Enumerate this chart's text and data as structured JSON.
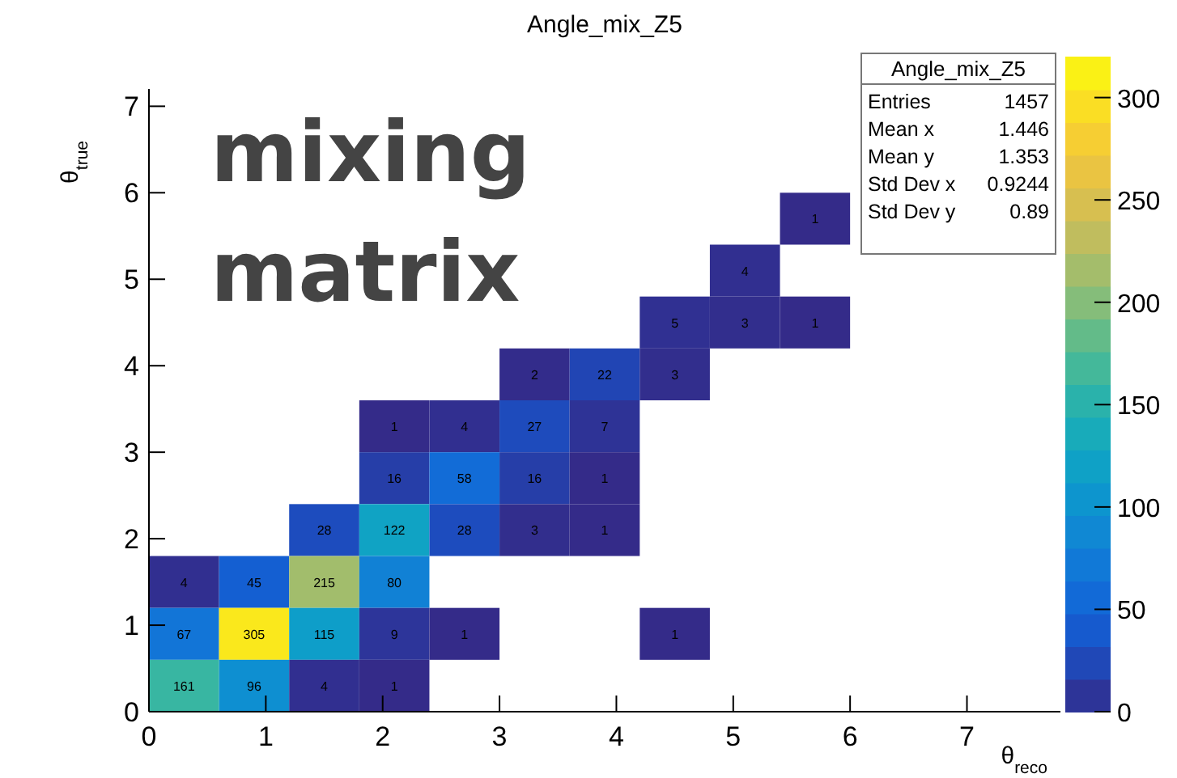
{
  "chart_data": {
    "type": "heatmap",
    "title": "Angle_mix_Z5",
    "xlabel": "θ$_{reco}$",
    "ylabel": "θ$_{true}$",
    "x": [
      0.3,
      0.9,
      1.5,
      2.1,
      2.7,
      3.3,
      3.9,
      4.5,
      5.1,
      5.7
    ],
    "y": [
      5.7,
      5.1,
      4.5,
      3.9,
      3.3,
      2.7,
      2.1,
      1.5,
      0.9,
      0.3
    ],
    "cells": [
      [
        null,
        null,
        null,
        null,
        null,
        null,
        null,
        null,
        null,
        1
      ],
      [
        null,
        null,
        null,
        null,
        null,
        null,
        null,
        null,
        4,
        null
      ],
      [
        null,
        null,
        null,
        null,
        null,
        null,
        null,
        5,
        3,
        1
      ],
      [
        null,
        null,
        null,
        null,
        null,
        2,
        22,
        3,
        null,
        null
      ],
      [
        null,
        null,
        null,
        1,
        4,
        27,
        7,
        null,
        null,
        null
      ],
      [
        null,
        null,
        null,
        16,
        58,
        16,
        1,
        null,
        null,
        null
      ],
      [
        null,
        null,
        28,
        122,
        28,
        3,
        1,
        null,
        null,
        null
      ],
      [
        4,
        45,
        215,
        80,
        null,
        null,
        null,
        null,
        null,
        null
      ],
      [
        67,
        305,
        115,
        9,
        1,
        null,
        null,
        1,
        null,
        null
      ],
      [
        161,
        96,
        4,
        1,
        null,
        null,
        null,
        null,
        null,
        null
      ]
    ],
    "xlim": [
      0,
      7.8
    ],
    "xticks": [
      0,
      1,
      2,
      3,
      4,
      5,
      6,
      7
    ],
    "ylim": [
      0,
      7.2
    ],
    "yticks": [
      0,
      1,
      2,
      3,
      4,
      5,
      6,
      7
    ],
    "clim": [
      0,
      320
    ],
    "cticks": [
      0,
      50,
      100,
      150,
      200,
      250,
      300
    ],
    "data_labels": true,
    "annotations": [
      "mixing matrix",
      "Angle_mix_Z5",
      "Entries 1457",
      "Mean x 1.446",
      "Mean y 1.353",
      "Std Dev x 0.9244",
      "Std Dev y 0.89"
    ]
  }
}
